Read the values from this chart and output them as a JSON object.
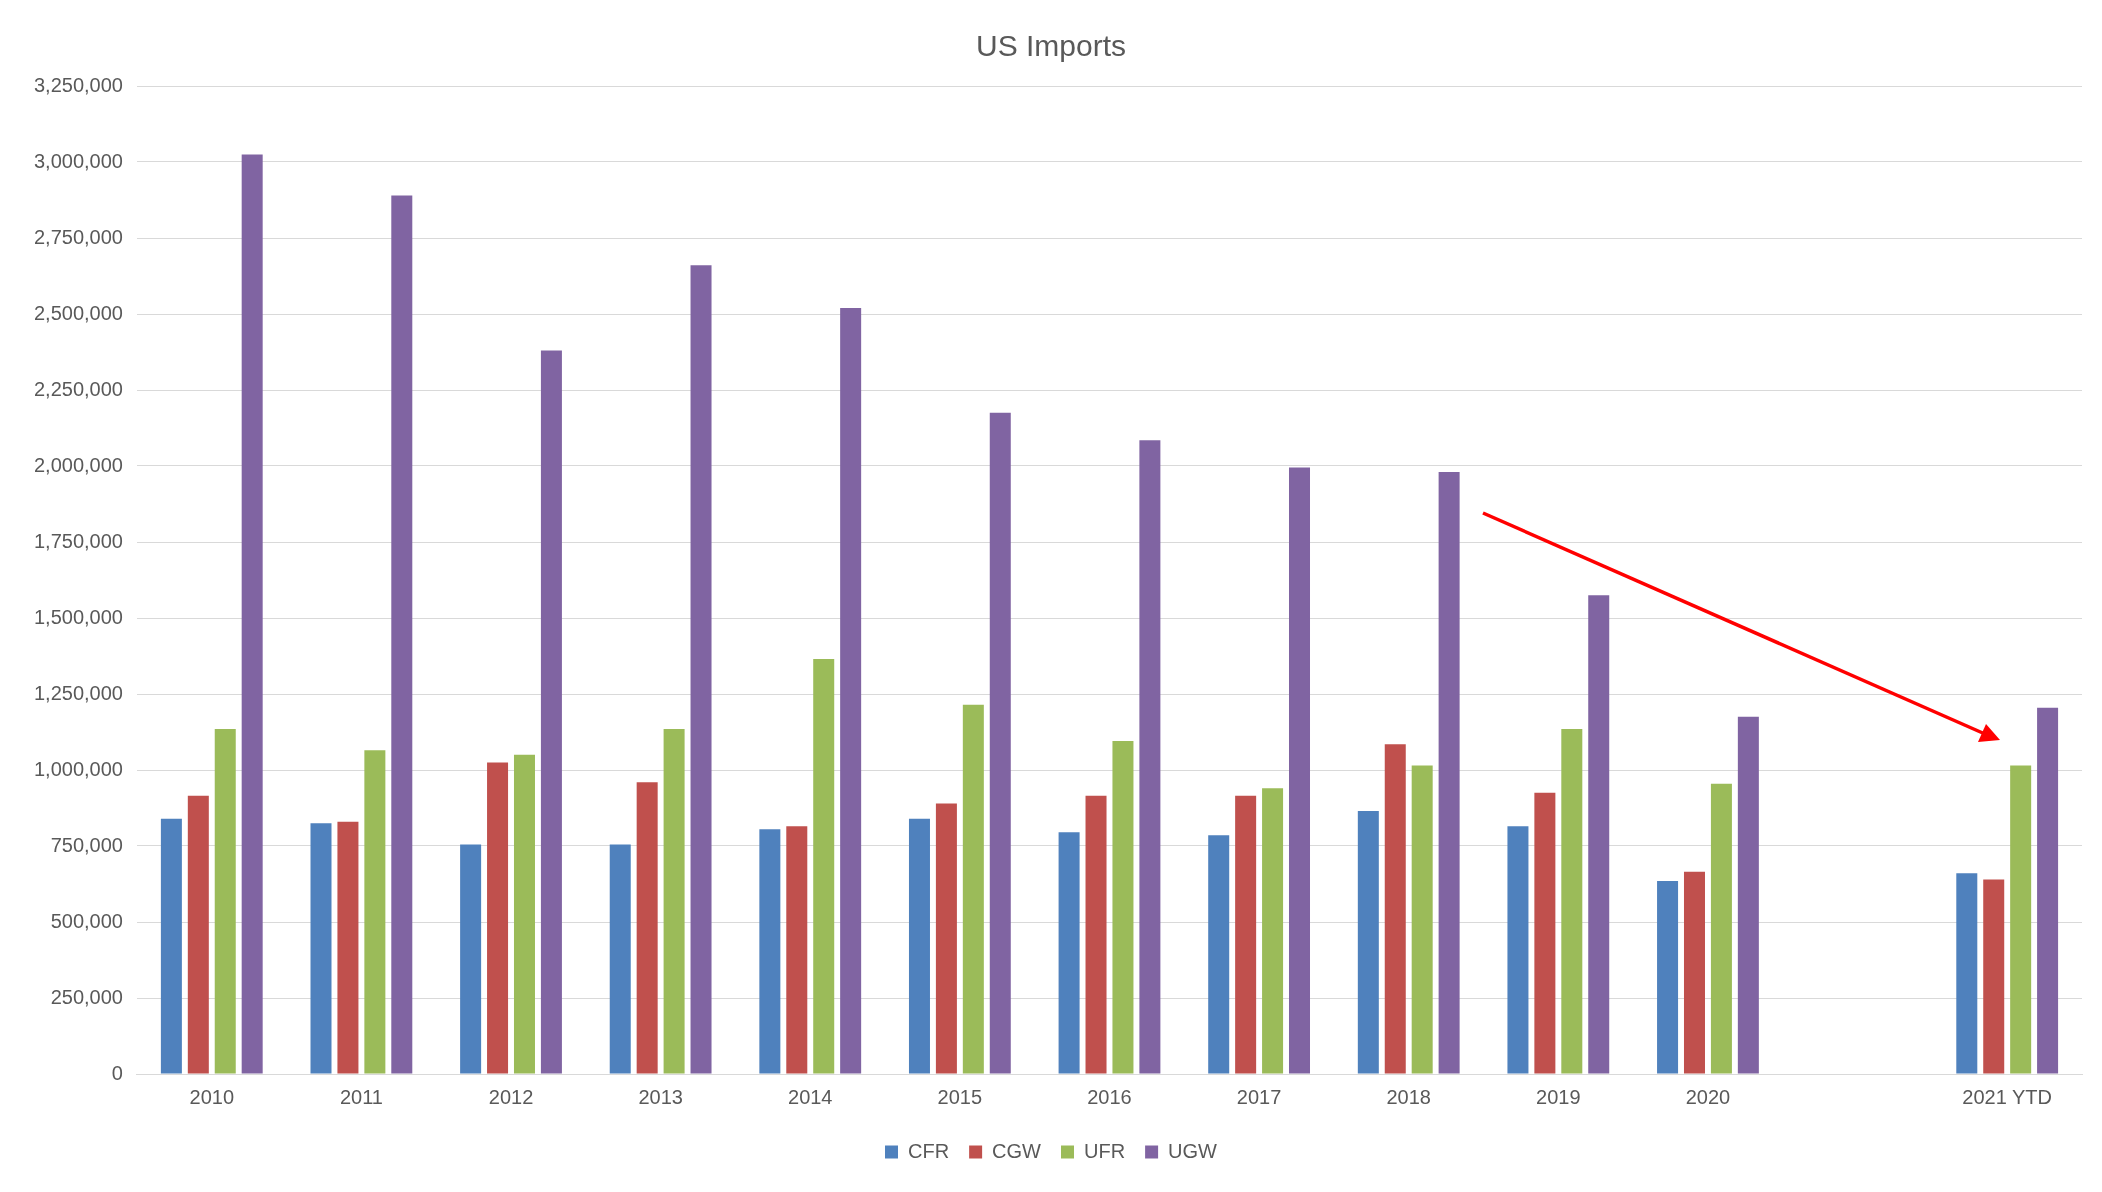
{
  "chart_data": {
    "type": "bar",
    "title": "US Imports",
    "categories": [
      "2010",
      "2011",
      "2012",
      "2013",
      "2014",
      "2015",
      "2016",
      "2017",
      "2018",
      "2019",
      "2020",
      null,
      "2021 YTD"
    ],
    "series": [
      {
        "name": "CFR",
        "color": "#4f81bd",
        "values": [
          840000,
          825000,
          755000,
          755000,
          805000,
          840000,
          795000,
          785000,
          865000,
          815000,
          635000,
          null,
          660000
        ]
      },
      {
        "name": "CGW",
        "color": "#c0504d",
        "values": [
          915000,
          830000,
          1025000,
          960000,
          815000,
          890000,
          915000,
          915000,
          1085000,
          925000,
          665000,
          null,
          640000
        ]
      },
      {
        "name": "UFR",
        "color": "#9bbb59",
        "values": [
          1135000,
          1065000,
          1050000,
          1135000,
          1365000,
          1215000,
          1095000,
          940000,
          1015000,
          1135000,
          955000,
          null,
          1015000
        ]
      },
      {
        "name": "UGW",
        "color": "#8064a2",
        "values": [
          3025000,
          2890000,
          2380000,
          2660000,
          2520000,
          2175000,
          2085000,
          1995000,
          1980000,
          1575000,
          1175000,
          null,
          1205000
        ]
      }
    ],
    "ylim": [
      0,
      3250000
    ],
    "yticks": [
      0,
      {
        "value": 250000,
        "label": "250,000"
      },
      {
        "value": 500000,
        "label": "500,000"
      },
      {
        "value": 750000,
        "label": "750,000"
      },
      {
        "value": 1000000,
        "label": "1,000,000"
      },
      {
        "value": 1250000,
        "label": "1,250,000"
      },
      {
        "value": 1500000,
        "label": "1,500,000"
      },
      {
        "value": 1750000,
        "label": "1,750,000"
      },
      {
        "value": 2000000,
        "label": "2,000,000"
      },
      {
        "value": 2250000,
        "label": "2,250,000"
      },
      {
        "value": 2500000,
        "label": "2,500,000"
      },
      {
        "value": 2750000,
        "label": "2,750,000"
      },
      {
        "value": 3000000,
        "label": "3,000,000"
      },
      {
        "value": 3250000,
        "label": "3,250,000"
      }
    ],
    "grid": "y",
    "legend": "bottom"
  }
}
